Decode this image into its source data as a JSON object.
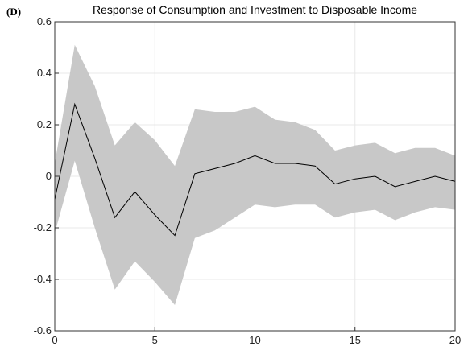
{
  "panel_label": "(D)",
  "chart_data": {
    "type": "area",
    "title": "Response of Consumption and Investment to Disposable Income",
    "xlabel": "",
    "ylabel": "",
    "xlim": [
      0,
      20
    ],
    "ylim": [
      -0.6,
      0.6
    ],
    "xticks": [
      0,
      5,
      10,
      15,
      20
    ],
    "yticks": [
      -0.6,
      -0.4,
      -0.2,
      0,
      0.2,
      0.4,
      0.6
    ],
    "xtick_labels": [
      "0",
      "5",
      "10",
      "15",
      "20"
    ],
    "ytick_labels": [
      "-0.6",
      "-0.4",
      "-0.2",
      "0",
      "0.2",
      "0.4",
      "0.6"
    ],
    "grid": true,
    "x": [
      0,
      1,
      2,
      3,
      4,
      5,
      6,
      7,
      8,
      9,
      10,
      11,
      12,
      13,
      14,
      15,
      16,
      17,
      18,
      19,
      20
    ],
    "series": [
      {
        "role": "upper-band",
        "values": [
          0.05,
          0.51,
          0.35,
          0.12,
          0.21,
          0.14,
          0.04,
          0.26,
          0.25,
          0.25,
          0.27,
          0.22,
          0.21,
          0.18,
          0.1,
          0.12,
          0.13,
          0.09,
          0.11,
          0.11,
          0.08
        ]
      },
      {
        "role": "lower-band",
        "values": [
          -0.22,
          0.06,
          -0.2,
          -0.44,
          -0.33,
          -0.41,
          -0.5,
          -0.24,
          -0.21,
          -0.16,
          -0.11,
          -0.12,
          -0.11,
          -0.11,
          -0.16,
          -0.14,
          -0.13,
          -0.17,
          -0.14,
          -0.12,
          -0.13
        ]
      },
      {
        "role": "point-estimate",
        "values": [
          -0.09,
          0.28,
          0.07,
          -0.16,
          -0.06,
          -0.15,
          -0.23,
          0.01,
          0.03,
          0.05,
          0.08,
          0.05,
          0.05,
          0.04,
          -0.03,
          -0.01,
          0.0,
          -0.04,
          -0.02,
          0.0,
          -0.02
        ]
      }
    ],
    "colors": {
      "band": "#c8c8c8",
      "line": "#000000",
      "grid": "#e8e8e8",
      "axis": "#333333"
    }
  }
}
